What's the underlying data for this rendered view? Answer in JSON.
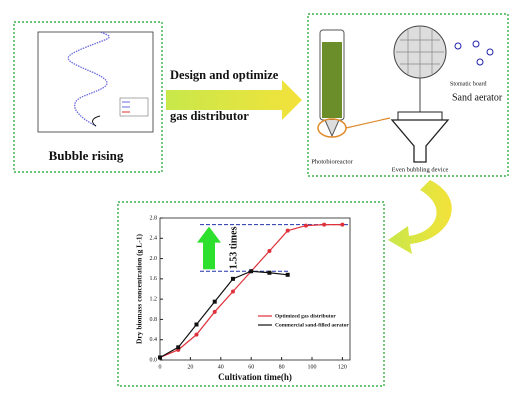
{
  "bubble_panel": {
    "caption": "Bubble rising"
  },
  "process_arrow": {
    "line1": "Design and optimize",
    "line2": "gas distributor"
  },
  "distributor_panel": {
    "photobioreactor": "Photobioreactor",
    "sand_aerator": "Sand aerator",
    "even_bubbling": "Even bubbling device",
    "stomatic_board": "Stomatic board"
  },
  "growth_chart": {
    "type": "line",
    "x_label": "Cultivation time(h)",
    "y_label": "Dry biomass concentration (g L-1)",
    "annotation": "1.53 times",
    "xlim": [
      0,
      125
    ],
    "xticks": [
      0,
      20,
      40,
      60,
      80,
      100,
      120
    ],
    "ylim": [
      0,
      2.8
    ],
    "yticks": [
      {
        "value": 0,
        "label": "0.0"
      },
      0.4,
      0.8,
      1.2,
      1.6,
      {
        "value": 2,
        "label": "2.0"
      },
      2.4,
      2.8
    ],
    "series": [
      {
        "name": "Optimized gas distributor",
        "color": "#e0303a",
        "x": [
          0,
          12,
          24,
          36,
          48,
          60,
          72,
          84,
          96,
          108,
          120
        ],
        "values": [
          0.05,
          0.2,
          0.5,
          0.95,
          1.35,
          1.75,
          2.15,
          2.55,
          2.65,
          2.67,
          2.67
        ]
      },
      {
        "name": "Commercial sand-filled aerator",
        "color": "#111111",
        "x": [
          0,
          12,
          24,
          36,
          48,
          60,
          72,
          84
        ],
        "values": [
          0.05,
          0.25,
          0.7,
          1.15,
          1.6,
          1.75,
          1.72,
          1.68
        ]
      }
    ]
  }
}
